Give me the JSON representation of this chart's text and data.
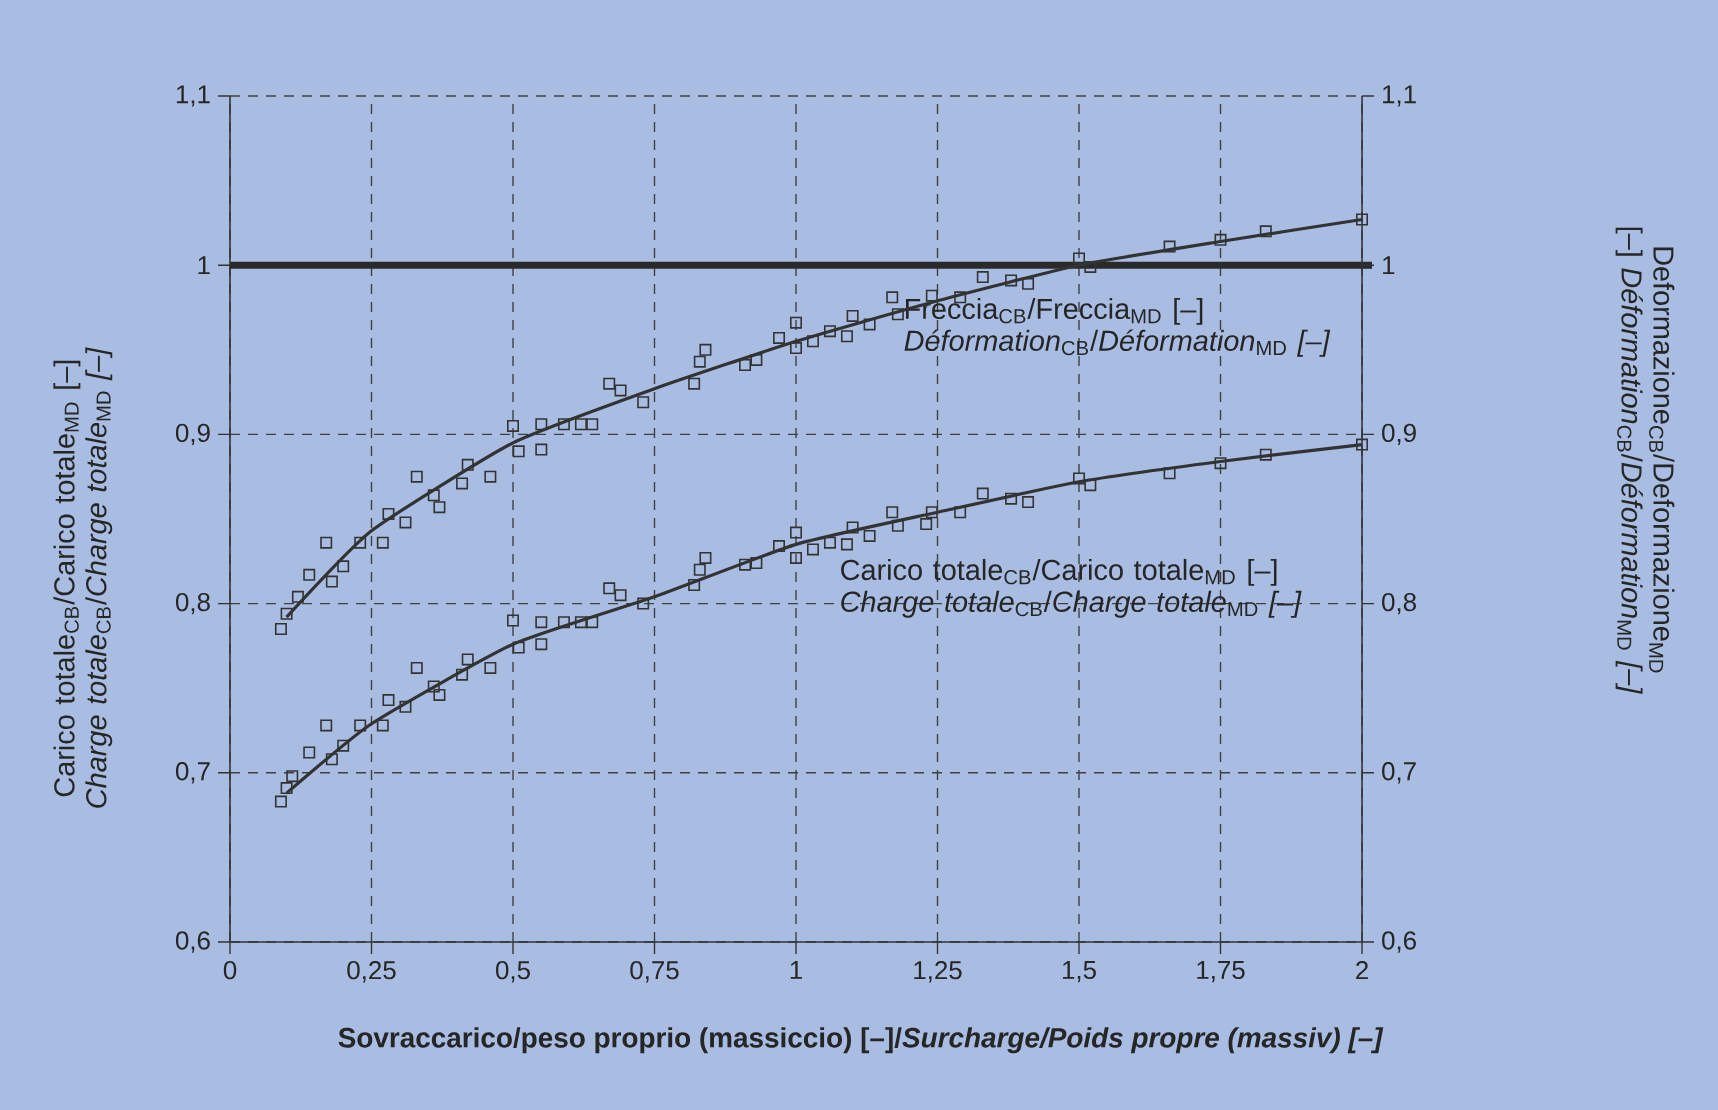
{
  "chart_data": {
    "type": "scatter",
    "xlabel": "Sovraccarico/peso proprio (massiccio) [–]/*Surcharge/Poids propre (massiv) [–]*",
    "ylabel": "Carico totale$_{CB}$/Carico totale$_{MD}$ [–] *Charge totale*$_{CB}$/*Charge totale*$_{MD}$ *[–]*",
    "y2label": "Deformazione$_{CB}$/Deformazione$_{MD}$ [–] *Déformation*$_{CB}$/*Déformation*$_{MD}$ *[–]*",
    "xlim": [
      0,
      2
    ],
    "xticks": [
      0,
      {
        "value": 0.25,
        "label": "0,25"
      },
      {
        "value": 0.5,
        "label": "0,5"
      },
      {
        "value": 0.75,
        "label": "0,75"
      },
      1,
      {
        "value": 1.25,
        "label": "1,25"
      },
      {
        "value": 1.5,
        "label": "1,5"
      },
      {
        "value": 1.75,
        "label": "1,75"
      },
      2
    ],
    "ylim": [
      0.6,
      1.1
    ],
    "yticks": [
      {
        "value": 0.6,
        "label": "0,6"
      },
      {
        "value": 0.7,
        "label": "0,7"
      },
      {
        "value": 0.8,
        "label": "0,8"
      },
      {
        "value": 0.9,
        "label": "0,9"
      },
      1,
      {
        "value": 1.1,
        "label": "1,1"
      }
    ],
    "y2lim": [
      0.6,
      1.1
    ],
    "y2ticks": [
      {
        "value": 0.6,
        "label": "0,6"
      },
      {
        "value": 0.7,
        "label": "0,7"
      },
      {
        "value": 0.8,
        "label": "0,8"
      },
      {
        "value": 0.9,
        "label": "0,9"
      },
      1,
      {
        "value": 1.1,
        "label": "1,1"
      }
    ],
    "grid": true,
    "ref_lines": [
      {
        "axis": "y",
        "value": 1,
        "color": "#2a2a2a"
      }
    ],
    "series": [
      {
        "name": "Freccia$_{CB}$/Freccia$_{MD}$ [–] *Déformation*$_{CB}$/*Déformation*$_{MD}$ *[–]*",
        "type": "scatter",
        "marker": "square",
        "color": "#333333",
        "x": [
          0.09,
          0.1,
          0.12,
          0.14,
          0.17,
          0.18,
          0.2,
          0.23,
          0.27,
          0.28,
          0.31,
          0.33,
          0.36,
          0.37,
          0.41,
          0.42,
          0.46,
          0.5,
          0.51,
          0.55,
          0.55,
          0.59,
          0.62,
          0.64,
          0.67,
          0.69,
          0.73,
          0.82,
          0.83,
          0.84,
          0.91,
          0.93,
          0.97,
          1.0,
          1.0,
          1.03,
          1.06,
          1.09,
          1.1,
          1.13,
          1.17,
          1.18,
          1.24,
          1.29,
          1.33,
          1.38,
          1.41,
          1.5,
          1.52,
          1.66,
          1.75,
          1.83,
          2.0
        ],
        "values": [
          0.785,
          0.794,
          0.804,
          0.817,
          0.836,
          0.813,
          0.822,
          0.836,
          0.836,
          0.853,
          0.848,
          0.875,
          0.864,
          0.857,
          0.871,
          0.882,
          0.875,
          0.905,
          0.89,
          0.891,
          0.906,
          0.906,
          0.906,
          0.906,
          0.93,
          0.926,
          0.919,
          0.93,
          0.943,
          0.95,
          0.941,
          0.944,
          0.957,
          0.966,
          0.951,
          0.955,
          0.961,
          0.958,
          0.97,
          0.965,
          0.981,
          0.971,
          0.982,
          0.981,
          0.993,
          0.991,
          0.989,
          1.004,
          0.999,
          1.011,
          1.015,
          1.02,
          1.027
        ]
      },
      {
        "type": "line",
        "marker": "none",
        "color": "#333333",
        "x": [
          0.1,
          0.25,
          0.5,
          0.75,
          1.0,
          1.25,
          1.5,
          1.75,
          2.0
        ],
        "values": [
          0.792,
          0.843,
          0.895,
          0.927,
          0.955,
          0.979,
          1.0,
          1.014,
          1.027
        ]
      },
      {
        "name": "Carico totale$_{CB}$/Carico totale$_{MD}$ [–] *Charge totale*$_{CB}$/*Charge totale*$_{MD}$ *[–]*",
        "type": "scatter",
        "marker": "square",
        "color": "#333333",
        "x": [
          0.09,
          0.1,
          0.11,
          0.14,
          0.17,
          0.18,
          0.2,
          0.23,
          0.27,
          0.28,
          0.31,
          0.33,
          0.36,
          0.37,
          0.41,
          0.42,
          0.46,
          0.5,
          0.51,
          0.55,
          0.55,
          0.59,
          0.62,
          0.64,
          0.67,
          0.69,
          0.73,
          0.82,
          0.83,
          0.84,
          0.91,
          0.93,
          0.97,
          1.0,
          1.0,
          1.03,
          1.06,
          1.09,
          1.1,
          1.13,
          1.17,
          1.18,
          1.23,
          1.24,
          1.29,
          1.33,
          1.38,
          1.41,
          1.5,
          1.52,
          1.66,
          1.75,
          1.83,
          2.0
        ],
        "values": [
          0.683,
          0.691,
          0.698,
          0.712,
          0.728,
          0.708,
          0.716,
          0.728,
          0.728,
          0.743,
          0.739,
          0.762,
          0.751,
          0.746,
          0.758,
          0.767,
          0.762,
          0.79,
          0.774,
          0.776,
          0.789,
          0.789,
          0.789,
          0.789,
          0.809,
          0.805,
          0.8,
          0.811,
          0.82,
          0.827,
          0.823,
          0.824,
          0.834,
          0.842,
          0.827,
          0.832,
          0.836,
          0.835,
          0.845,
          0.84,
          0.854,
          0.846,
          0.847,
          0.854,
          0.854,
          0.865,
          0.862,
          0.86,
          0.874,
          0.87,
          0.877,
          0.883,
          0.888,
          0.894
        ]
      },
      {
        "type": "line",
        "marker": "none",
        "color": "#333333",
        "x": [
          0.1,
          0.25,
          0.5,
          0.75,
          1.0,
          1.25,
          1.5,
          1.75,
          2.0
        ],
        "values": [
          0.688,
          0.729,
          0.776,
          0.804,
          0.835,
          0.854,
          0.872,
          0.884,
          0.894
        ]
      }
    ]
  }
}
